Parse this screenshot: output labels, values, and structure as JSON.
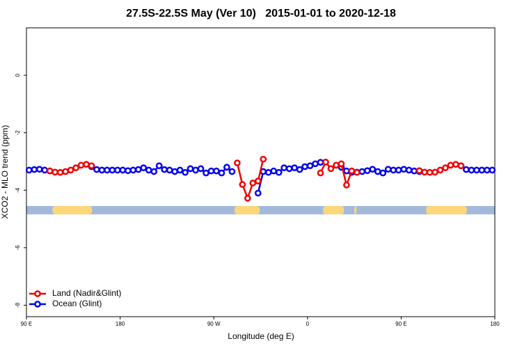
{
  "chart_data": {
    "type": "line",
    "title": "27.5S-22.5S May (Ver 10)   2015-01-01 to 2020-12-18",
    "xlabel": "Longitude (deg E)",
    "ylabel": "XCO2 - MLO trend (ppm)",
    "xlim": [
      90,
      540
    ],
    "ylim": [
      -8.4,
      1.65
    ],
    "xticks": [
      {
        "value": 90,
        "label": "90 E"
      },
      180,
      {
        "value": 270,
        "label": "90 W"
      },
      {
        "value": 360,
        "label": "0"
      },
      {
        "value": 450,
        "label": "90 E"
      },
      {
        "value": 540,
        "label": "180"
      }
    ],
    "yticks": [
      0,
      -2,
      -4,
      -6,
      -8
    ],
    "legend": "bottom-left",
    "x": [
      92.5,
      97.5,
      102.5,
      107.5,
      112.5,
      117.5,
      122.5,
      127.5,
      132.5,
      137.5,
      142.5,
      147.5,
      152.5,
      157.5,
      162.5,
      167.5,
      172.5,
      177.5,
      182.5,
      187.5,
      192.5,
      197.5,
      202.5,
      207.5,
      212.5,
      217.5,
      222.5,
      227.5,
      232.5,
      237.5,
      242.5,
      247.5,
      252.5,
      257.5,
      262.5,
      267.5,
      272.5,
      277.5,
      282.5,
      287.5,
      292.5,
      297.5,
      302.5,
      307.5,
      312.5,
      317.5,
      322.5,
      327.5,
      332.5,
      337.5,
      342.5,
      347.5,
      352.5,
      357.5,
      362.5,
      367.5,
      372.5,
      377.5,
      382.5,
      387.5,
      392.5,
      397.5,
      402.5,
      407.5,
      412.5,
      417.5,
      422.5,
      427.5,
      432.5,
      437.5,
      442.5,
      447.5,
      452.5,
      457.5,
      462.5,
      467.5,
      472.5,
      477.5,
      482.5,
      487.5,
      492.5,
      497.5,
      502.5,
      507.5,
      512.5,
      517.5,
      522.5,
      527.5,
      532.5,
      537.5
    ],
    "series": [
      {
        "name": "Ocean (Glint)",
        "color": "#0000ee",
        "values": [
          -3.3,
          -3.28,
          -3.27,
          -3.3,
          -3.33,
          null,
          null,
          null,
          null,
          null,
          null,
          null,
          -3.18,
          -3.28,
          -3.3,
          -3.3,
          -3.3,
          -3.3,
          -3.3,
          -3.32,
          -3.3,
          -3.28,
          -3.22,
          -3.3,
          -3.35,
          -3.15,
          -3.28,
          -3.3,
          -3.35,
          -3.3,
          -3.38,
          -3.25,
          -3.3,
          -3.25,
          -3.4,
          -3.33,
          -3.33,
          -3.4,
          -3.2,
          -3.35,
          null,
          null,
          null,
          null,
          -4.1,
          -3.35,
          -3.38,
          -3.33,
          -3.38,
          -3.22,
          -3.25,
          -3.22,
          -3.28,
          -3.18,
          -3.15,
          -3.08,
          -3.03,
          null,
          null,
          null,
          -3.2,
          -3.33,
          -3.38,
          -3.37,
          -3.35,
          -3.32,
          -3.27,
          -3.35,
          -3.4,
          -3.27,
          -3.3,
          -3.3,
          -3.27,
          -3.3,
          -3.33,
          -3.35,
          null,
          null,
          null,
          null,
          null,
          null,
          null,
          -3.15,
          -3.28,
          -3.3,
          -3.3,
          -3.3,
          -3.3,
          -3.3
        ]
      },
      {
        "name": "Land (Nadir&Glint)",
        "color": "#ee0000",
        "values": [
          null,
          null,
          null,
          null,
          -3.33,
          -3.37,
          -3.38,
          -3.35,
          -3.3,
          -3.22,
          -3.13,
          -3.1,
          -3.15,
          null,
          null,
          null,
          null,
          null,
          null,
          null,
          null,
          null,
          null,
          null,
          null,
          null,
          null,
          null,
          null,
          null,
          null,
          null,
          null,
          null,
          null,
          null,
          null,
          null,
          null,
          null,
          -3.05,
          -3.8,
          -4.28,
          -3.75,
          -3.68,
          -2.92,
          null,
          null,
          null,
          null,
          null,
          null,
          null,
          null,
          null,
          null,
          -3.4,
          -3.02,
          -3.25,
          -3.13,
          -3.08,
          -3.82,
          -3.33,
          -3.38,
          null,
          null,
          null,
          null,
          null,
          null,
          null,
          null,
          null,
          null,
          null,
          -3.32,
          -3.37,
          -3.38,
          -3.37,
          -3.3,
          -3.22,
          -3.13,
          -3.1,
          -3.15,
          null,
          null,
          null,
          null,
          null,
          null
        ]
      }
    ],
    "surface": {
      "ylim": [
        -4.84,
        -4.55
      ],
      "ocean_color": "#a3b9dc",
      "land_color": "#fcd77a",
      "land_spans": [
        [
          115,
          153
        ],
        [
          290,
          314
        ],
        [
          375,
          395
        ],
        [
          405,
          407
        ],
        [
          474,
          513
        ]
      ]
    }
  }
}
